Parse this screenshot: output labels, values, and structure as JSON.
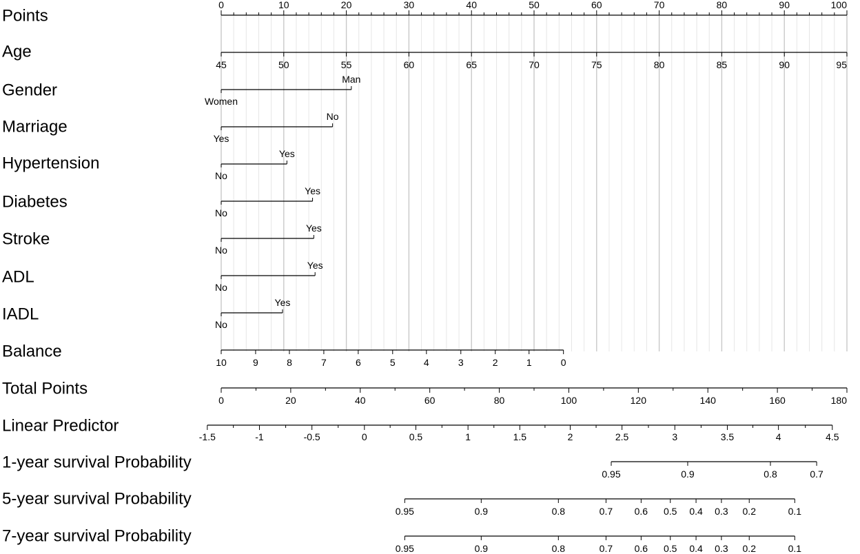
{
  "chart_data": {
    "type": "nomogram",
    "grid": true,
    "points_scale": {
      "label": "Points",
      "min": 0,
      "max": 100,
      "major_ticks": [
        0,
        10,
        20,
        30,
        40,
        50,
        60,
        70,
        80,
        90,
        100
      ],
      "minor_step": 2
    },
    "variables": [
      {
        "label": "Age",
        "kind": "continuous",
        "ticks": [
          {
            "label": "45",
            "points": 0
          },
          {
            "label": "50",
            "points": 10
          },
          {
            "label": "55",
            "points": 20
          },
          {
            "label": "60",
            "points": 30
          },
          {
            "label": "65",
            "points": 40
          },
          {
            "label": "70",
            "points": 50
          },
          {
            "label": "75",
            "points": 60
          },
          {
            "label": "80",
            "points": 70
          },
          {
            "label": "85",
            "points": 80
          },
          {
            "label": "90",
            "points": 90
          },
          {
            "label": "95",
            "points": 100
          }
        ]
      },
      {
        "label": "Gender",
        "kind": "binary",
        "low": {
          "label": "Women",
          "points": 0
        },
        "high": {
          "label": "Man",
          "points": 20.8
        }
      },
      {
        "label": "Marriage",
        "kind": "binary",
        "low": {
          "label": "Yes",
          "points": 0
        },
        "high": {
          "label": "No",
          "points": 17.8
        }
      },
      {
        "label": "Hypertension",
        "kind": "binary",
        "low": {
          "label": "No",
          "points": 0
        },
        "high": {
          "label": "Yes",
          "points": 10.5
        }
      },
      {
        "label": "Diabetes",
        "kind": "binary",
        "low": {
          "label": "No",
          "points": 0
        },
        "high": {
          "label": "Yes",
          "points": 14.6
        }
      },
      {
        "label": "Stroke",
        "kind": "binary",
        "low": {
          "label": "No",
          "points": 0
        },
        "high": {
          "label": "Yes",
          "points": 14.8
        }
      },
      {
        "label": "ADL",
        "kind": "binary",
        "low": {
          "label": "No",
          "points": 0
        },
        "high": {
          "label": "Yes",
          "points": 15.0
        }
      },
      {
        "label": "IADL",
        "kind": "binary",
        "low": {
          "label": "No",
          "points": 0
        },
        "high": {
          "label": "Yes",
          "points": 9.8
        }
      },
      {
        "label": "Balance",
        "kind": "continuous",
        "ticks": [
          {
            "label": "10",
            "points": 0
          },
          {
            "label": "9",
            "points": 5.5
          },
          {
            "label": "8",
            "points": 10.9
          },
          {
            "label": "7",
            "points": 16.4
          },
          {
            "label": "6",
            "points": 21.9
          },
          {
            "label": "5",
            "points": 27.4
          },
          {
            "label": "4",
            "points": 32.8
          },
          {
            "label": "3",
            "points": 38.3
          },
          {
            "label": "2",
            "points": 43.8
          },
          {
            "label": "1",
            "points": 49.2
          },
          {
            "label": "0",
            "points": 54.7
          }
        ]
      }
    ],
    "total_points": {
      "label": "Total Points",
      "min": 0,
      "max": 180,
      "major_ticks": [
        0,
        20,
        40,
        60,
        80,
        100,
        120,
        140,
        160,
        180
      ],
      "minor_step": 10
    },
    "linear_predictor": {
      "label": "Linear Predictor",
      "ticks": [
        {
          "label": "-1.5",
          "total_points": -4.0
        },
        {
          "label": "-1",
          "total_points": 11.0
        },
        {
          "label": "-0.5",
          "total_points": 26.1
        },
        {
          "label": "0",
          "total_points": 41.2
        },
        {
          "label": "0.5",
          "total_points": 56.0
        },
        {
          "label": "1",
          "total_points": 71.0
        },
        {
          "label": "1.5",
          "total_points": 85.9
        },
        {
          "label": "2",
          "total_points": 100.4
        },
        {
          "label": "2.5",
          "total_points": 115.3
        },
        {
          "label": "3",
          "total_points": 130.5
        },
        {
          "label": "3.5",
          "total_points": 145.6
        },
        {
          "label": "4",
          "total_points": 160.3
        },
        {
          "label": "4.5",
          "total_points": 175.8
        }
      ],
      "minor_between": 1
    },
    "survival_scales": [
      {
        "label": "1-year survival Probability",
        "ticks": [
          {
            "label": "0.95",
            "total_points": 112.2
          },
          {
            "label": "0.9",
            "total_points": 134.2
          },
          {
            "label": "0.8",
            "total_points": 158.0
          },
          {
            "label": "0.7",
            "total_points": 171.3
          }
        ]
      },
      {
        "label": "5-year survival Probability",
        "ticks": [
          {
            "label": "0.95",
            "total_points": 52.8
          },
          {
            "label": "0.9",
            "total_points": 74.8
          },
          {
            "label": "0.8",
            "total_points": 97.0
          },
          {
            "label": "0.7",
            "total_points": 110.7
          },
          {
            "label": "0.6",
            "total_points": 120.8
          },
          {
            "label": "0.5",
            "total_points": 129.2
          },
          {
            "label": "0.4",
            "total_points": 136.6
          },
          {
            "label": "0.3",
            "total_points": 143.9
          },
          {
            "label": "0.2",
            "total_points": 151.9
          },
          {
            "label": "0.1",
            "total_points": 165.0
          }
        ]
      },
      {
        "label": "7-year survival Probability",
        "ticks": [
          {
            "label": "0.95",
            "total_points": 52.8
          },
          {
            "label": "0.9",
            "total_points": 74.8
          },
          {
            "label": "0.8",
            "total_points": 97.0
          },
          {
            "label": "0.7",
            "total_points": 110.7
          },
          {
            "label": "0.6",
            "total_points": 120.8
          },
          {
            "label": "0.5",
            "total_points": 129.2
          },
          {
            "label": "0.4",
            "total_points": 136.6
          },
          {
            "label": "0.3",
            "total_points": 143.9
          },
          {
            "label": "0.2",
            "total_points": 151.9
          },
          {
            "label": "0.1",
            "total_points": 165.0
          }
        ]
      }
    ]
  }
}
